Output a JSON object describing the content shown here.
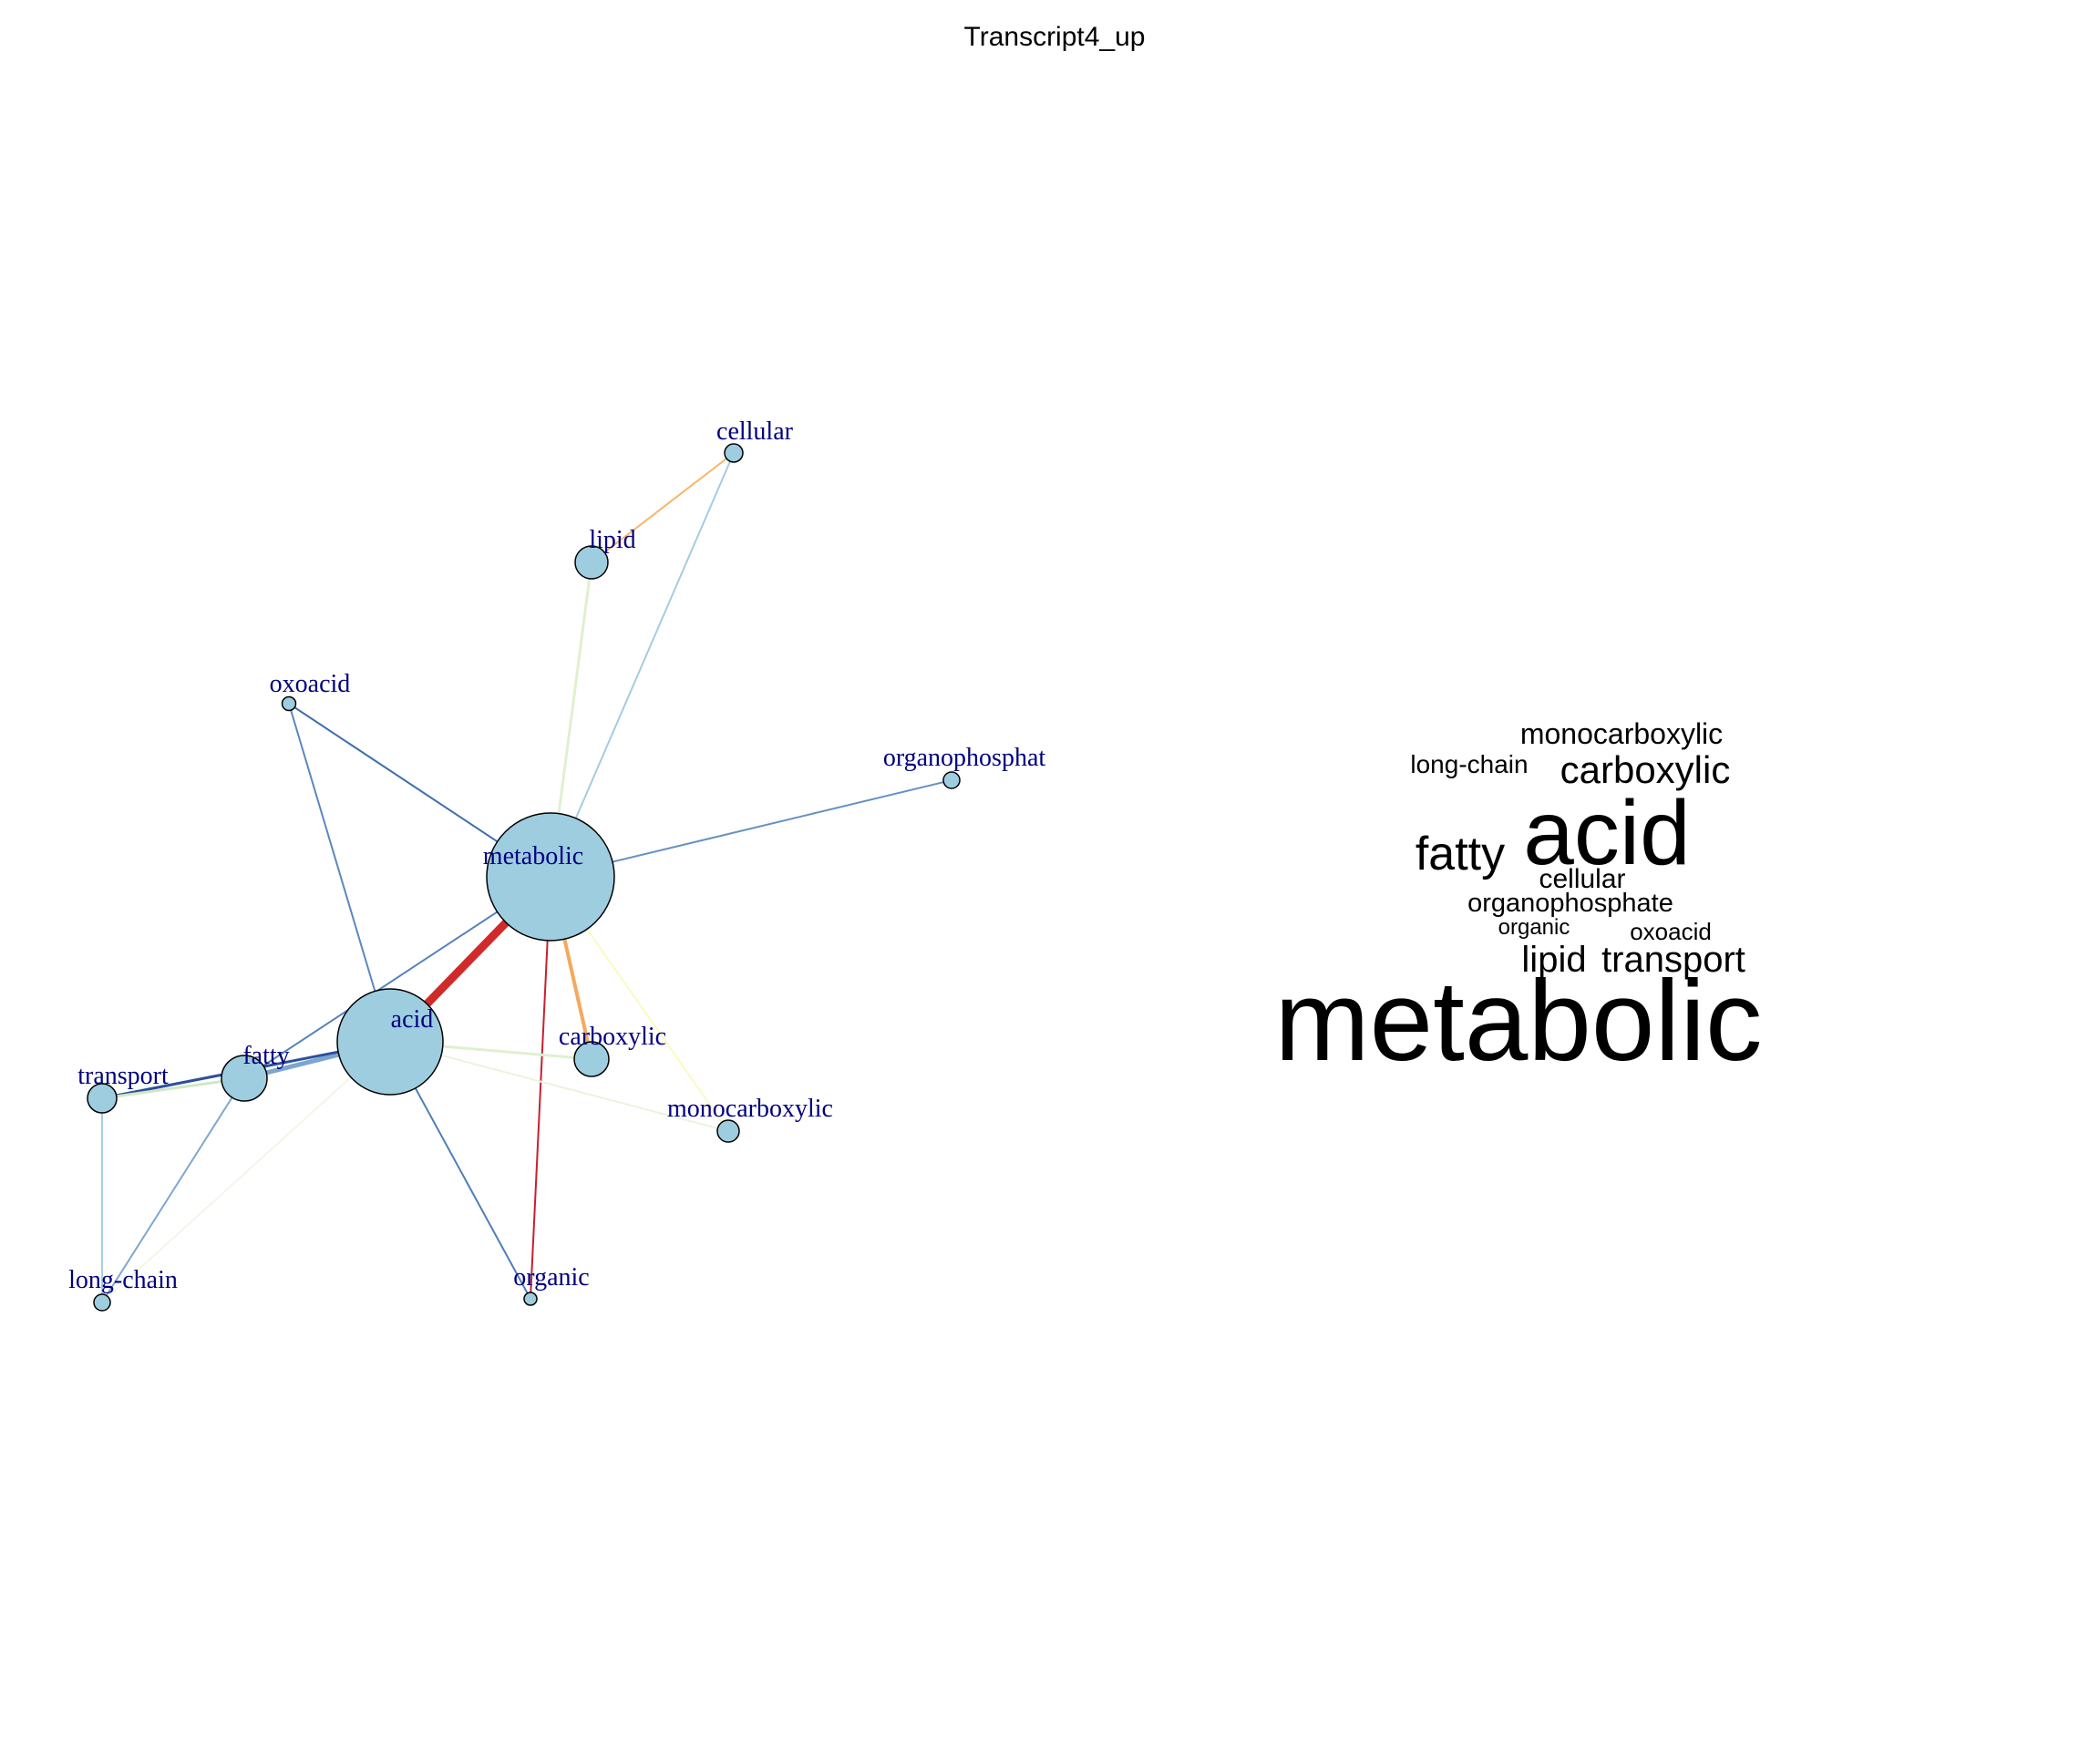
{
  "title": "Transcript4_up",
  "network": {
    "node_color": "#9ecde0",
    "node_stroke": "#000000",
    "label_color": "#000080",
    "nodes": [
      {
        "id": "metabolic",
        "label": "metabolic",
        "size": 10
      },
      {
        "id": "acid",
        "label": "acid",
        "size": 8
      },
      {
        "id": "fatty",
        "label": "fatty",
        "size": 3.5
      },
      {
        "id": "carboxylic",
        "label": "carboxylic",
        "size": 2.7
      },
      {
        "id": "lipid",
        "label": "lipid",
        "size": 2.6
      },
      {
        "id": "transport",
        "label": "transport",
        "size": 2.3
      },
      {
        "id": "monocarboxylic",
        "label": "monocarboxylic",
        "size": 1.7
      },
      {
        "id": "cellular",
        "label": "cellular",
        "size": 1.5
      },
      {
        "id": "organophosphate",
        "label": "organophosphat",
        "size": 1.4
      },
      {
        "id": "long-chain",
        "label": "long-chain",
        "size": 1.3
      },
      {
        "id": "oxoacid",
        "label": "oxoacid",
        "size": 1.1
      },
      {
        "id": "organic",
        "label": "organic",
        "size": 1.0
      }
    ],
    "edges": [
      {
        "source": "metabolic",
        "target": "acid",
        "color": "#d02b2b",
        "weight": 9
      },
      {
        "source": "metabolic",
        "target": "organic",
        "color": "#c8202e",
        "weight": 2
      },
      {
        "source": "metabolic",
        "target": "carboxylic",
        "color": "#f4a95c",
        "weight": 4
      },
      {
        "source": "metabolic",
        "target": "lipid",
        "color": "#dff0cf",
        "weight": 3
      },
      {
        "source": "metabolic",
        "target": "cellular",
        "color": "#a6cbe2",
        "weight": 2
      },
      {
        "source": "metabolic",
        "target": "oxoacid",
        "color": "#3e6fae",
        "weight": 2
      },
      {
        "source": "metabolic",
        "target": "organophosphate",
        "color": "#6592c0",
        "weight": 2
      },
      {
        "source": "metabolic",
        "target": "fatty",
        "color": "#5683bb",
        "weight": 2
      },
      {
        "source": "metabolic",
        "target": "monocarboxylic",
        "color": "#fafac0",
        "weight": 2
      },
      {
        "source": "lipid",
        "target": "cellular",
        "color": "#fbb56a",
        "weight": 2
      },
      {
        "source": "acid",
        "target": "fatty",
        "color": "#7aa6d0",
        "weight": 5
      },
      {
        "source": "acid",
        "target": "transport",
        "color": "#2c4f9c",
        "weight": 3
      },
      {
        "source": "acid",
        "target": "oxoacid",
        "color": "#5a88bf",
        "weight": 2
      },
      {
        "source": "acid",
        "target": "organic",
        "color": "#4f7fb9",
        "weight": 2
      },
      {
        "source": "acid",
        "target": "carboxylic",
        "color": "#dff0cf",
        "weight": 3
      },
      {
        "source": "acid",
        "target": "monocarboxylic",
        "color": "#eaf4dd",
        "weight": 2
      },
      {
        "source": "acid",
        "target": "long-chain",
        "color": "#edf5e2",
        "weight": 1.5
      },
      {
        "source": "fatty",
        "target": "transport",
        "color": "#cfe8c3",
        "weight": 3
      },
      {
        "source": "fatty",
        "target": "long-chain",
        "color": "#7fa7cf",
        "weight": 2
      },
      {
        "source": "transport",
        "target": "long-chain",
        "color": "#a8cfe0",
        "weight": 2
      }
    ]
  },
  "wordcloud": [
    {
      "word": "metabolic",
      "size": 125
    },
    {
      "word": "acid",
      "size": 100
    },
    {
      "word": "fatty",
      "size": 52
    },
    {
      "word": "carboxylic",
      "size": 42
    },
    {
      "word": "transport",
      "size": 40
    },
    {
      "word": "lipid",
      "size": 40
    },
    {
      "word": "monocarboxylic",
      "size": 32
    },
    {
      "word": "cellular",
      "size": 30
    },
    {
      "word": "organophosphate",
      "size": 29
    },
    {
      "word": "long-chain",
      "size": 28
    },
    {
      "word": "oxoacid",
      "size": 26
    },
    {
      "word": "organic",
      "size": 24
    }
  ]
}
